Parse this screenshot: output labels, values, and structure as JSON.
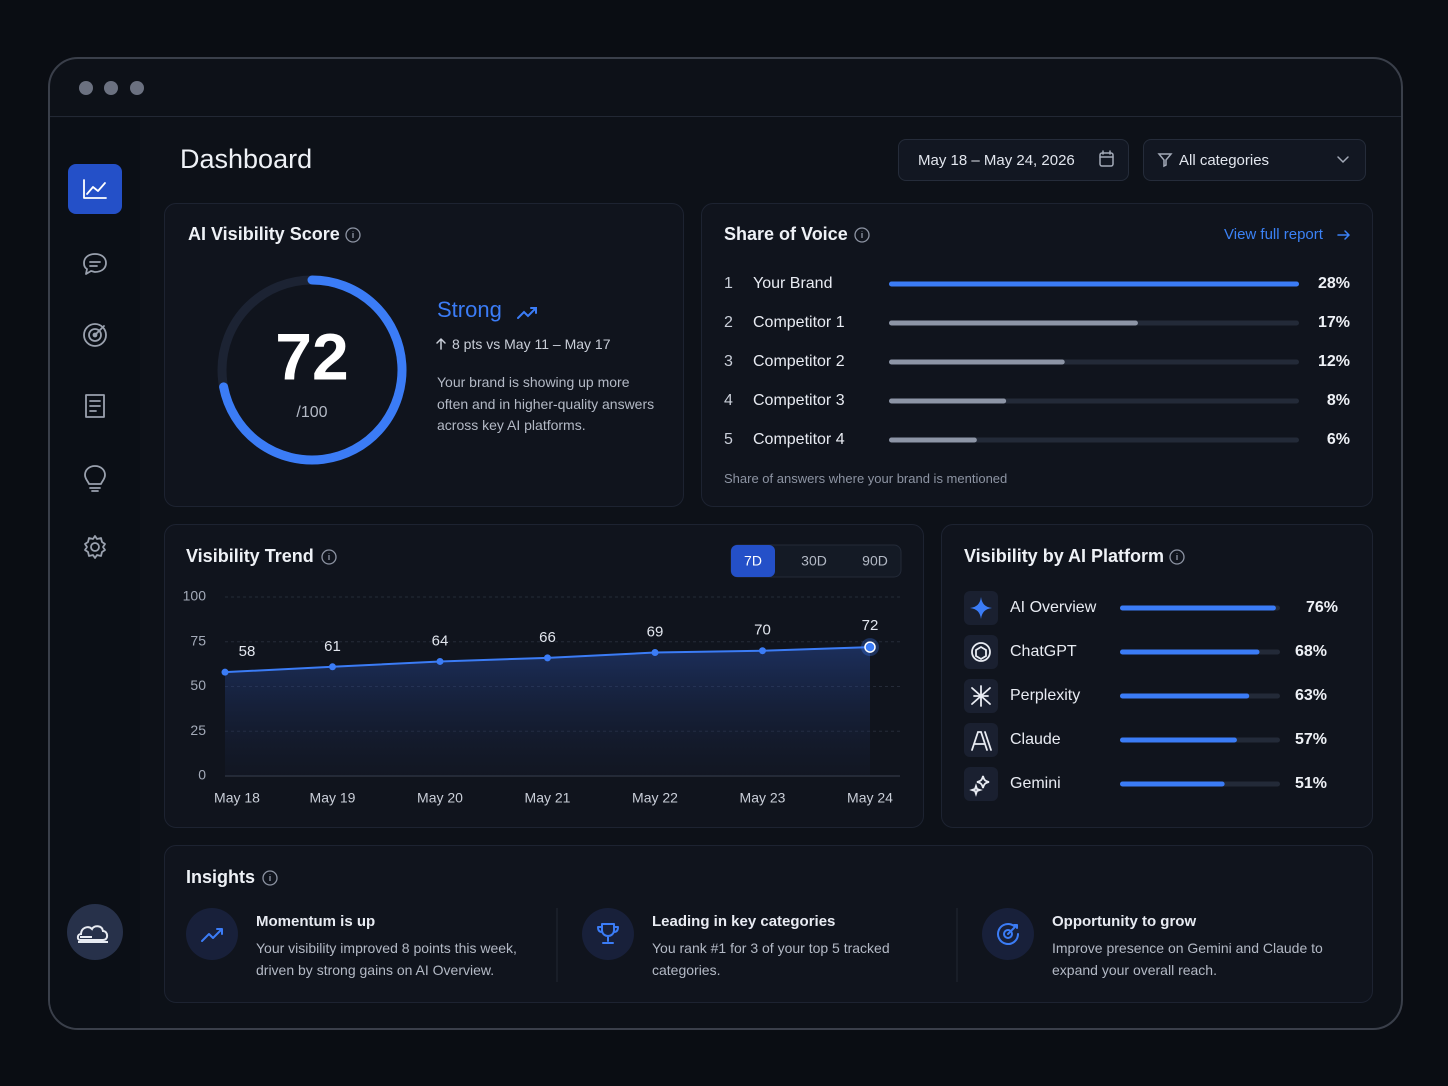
{
  "header": {
    "title": "Dashboard",
    "date_range": "May 18 – May 24, 2026",
    "category_filter": "All categories"
  },
  "chart_data": [
    {
      "type": "gauge",
      "title": "AI Visibility Score",
      "value": 72,
      "ylim": [
        0,
        100
      ],
      "unit_label": "/100",
      "rating": "Strong",
      "change": "8 pts vs May 11 – May 17",
      "description": "Your brand is showing up more often and in higher-quality answers across key AI platforms.",
      "color": "#3b7cf6"
    },
    {
      "type": "bar",
      "title": "Share of Voice",
      "link": "View full report",
      "ranks": [
        1,
        2,
        3,
        4,
        5
      ],
      "categories": [
        "Your Brand",
        "Competitor 1",
        "Competitor 2",
        "Competitor 3",
        "Competitor 4"
      ],
      "values": [
        28,
        17,
        12,
        8,
        6
      ],
      "value_labels": [
        "28%",
        "17%",
        "12%",
        "8%",
        "6%"
      ],
      "xlim": [
        0,
        28
      ],
      "colors": [
        "#3b7cf6",
        "#8d95a6",
        "#8d95a6",
        "#8d95a6",
        "#8d95a6"
      ],
      "footnote": "Share of answers where your brand is mentioned"
    },
    {
      "type": "line",
      "title": "Visibility Trend",
      "ranges": [
        "7D",
        "30D",
        "90D"
      ],
      "active_range": 0,
      "categories": [
        "May 18",
        "May 19",
        "May 20",
        "May 21",
        "May 22",
        "May 23",
        "May 24"
      ],
      "values": [
        58,
        61,
        64,
        66,
        69,
        70,
        72
      ],
      "ylim": [
        0,
        100
      ],
      "yticks": [
        0,
        25,
        50,
        75,
        100
      ],
      "grid": true,
      "color": "#3b7cf6"
    },
    {
      "type": "bar",
      "title": "Visibility by AI Platform",
      "categories": [
        "AI Overview",
        "ChatGPT",
        "Perplexity",
        "Claude",
        "Gemini"
      ],
      "values": [
        76,
        68,
        63,
        57,
        51
      ],
      "value_labels": [
        "76%",
        "68%",
        "63%",
        "57%",
        "51%"
      ],
      "xlim": [
        0,
        78
      ],
      "color": "#3b7cf6"
    }
  ],
  "insights": {
    "title": "Insights",
    "items": [
      {
        "title": "Momentum is up",
        "text": "Your visibility improved 8 points this week, driven by strong gains on AI Overview."
      },
      {
        "title": "Leading in key categories",
        "text": "You rank #1 for 3 of your top 5 tracked categories."
      },
      {
        "title": "Opportunity to grow",
        "text": "Improve presence on Gemini and Claude to expand your overall reach."
      }
    ]
  }
}
